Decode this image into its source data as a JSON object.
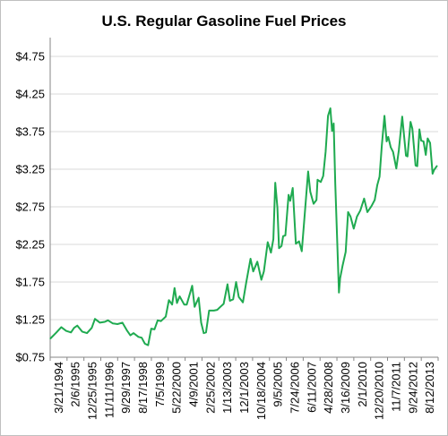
{
  "chart_data": {
    "type": "line",
    "title": "U.S. Regular Gasoline Fuel Prices",
    "xlabel": "",
    "ylabel": "",
    "ylim": [
      0.75,
      5.0
    ],
    "yticks": [
      "$0.75",
      "$1.25",
      "$1.75",
      "$2.25",
      "$2.75",
      "$3.25",
      "$3.75",
      "$4.25",
      "$4.75"
    ],
    "ytick_values": [
      0.75,
      1.25,
      1.75,
      2.25,
      2.75,
      3.25,
      3.75,
      4.25,
      4.75
    ],
    "xticks": [
      "3/21/1994",
      "2/6/1995",
      "12/25/1995",
      "11/11/1996",
      "9/29/1997",
      "8/17/1998",
      "7/5/1999",
      "5/22/2000",
      "4/9/2001",
      "2/25/2002",
      "1/13/2003",
      "12/1/2003",
      "10/18/2004",
      "9/5/2005",
      "7/24/2006",
      "6/11/2007",
      "4/28/2008",
      "3/16/2009",
      "2/1/2010",
      "12/20/2010",
      "11/7/2011",
      "9/24/2012",
      "8/12/2013"
    ],
    "grid": true,
    "legend": "none",
    "line_color": "#1faa50",
    "series": [
      {
        "values": [
          [
            "1994-01-10",
            1.0
          ],
          [
            "1994-05-01",
            1.08
          ],
          [
            "1994-08-01",
            1.15
          ],
          [
            "1994-11-01",
            1.1
          ],
          [
            "1995-02-01",
            1.08
          ],
          [
            "1995-04-01",
            1.14
          ],
          [
            "1995-06-01",
            1.17
          ],
          [
            "1995-09-01",
            1.09
          ],
          [
            "1995-12-01",
            1.07
          ],
          [
            "1996-03-01",
            1.14
          ],
          [
            "1996-05-01",
            1.26
          ],
          [
            "1996-08-01",
            1.21
          ],
          [
            "1996-11-01",
            1.22
          ],
          [
            "1997-01-01",
            1.24
          ],
          [
            "1997-04-01",
            1.2
          ],
          [
            "1997-07-01",
            1.19
          ],
          [
            "1997-10-01",
            1.21
          ],
          [
            "1998-01-01",
            1.1
          ],
          [
            "1998-03-01",
            1.04
          ],
          [
            "1998-05-01",
            1.07
          ],
          [
            "1998-08-01",
            1.02
          ],
          [
            "1998-10-01",
            1.01
          ],
          [
            "1998-12-01",
            0.93
          ],
          [
            "1999-02-01",
            0.91
          ],
          [
            "1999-04-01",
            1.13
          ],
          [
            "1999-06-01",
            1.12
          ],
          [
            "1999-08-01",
            1.24
          ],
          [
            "1999-10-01",
            1.23
          ],
          [
            "2000-01-01",
            1.29
          ],
          [
            "2000-03-01",
            1.51
          ],
          [
            "2000-05-01",
            1.45
          ],
          [
            "2000-06-15",
            1.67
          ],
          [
            "2000-08-01",
            1.47
          ],
          [
            "2000-09-20",
            1.56
          ],
          [
            "2000-12-15",
            1.45
          ],
          [
            "2001-02-01",
            1.45
          ],
          [
            "2001-05-15",
            1.7
          ],
          [
            "2001-07-01",
            1.42
          ],
          [
            "2001-09-15",
            1.54
          ],
          [
            "2001-11-01",
            1.21
          ],
          [
            "2001-12-20",
            1.07
          ],
          [
            "2002-02-01",
            1.08
          ],
          [
            "2002-04-01",
            1.37
          ],
          [
            "2002-07-01",
            1.37
          ],
          [
            "2002-09-01",
            1.38
          ],
          [
            "2002-11-01",
            1.42
          ],
          [
            "2003-01-01",
            1.46
          ],
          [
            "2003-03-15",
            1.72
          ],
          [
            "2003-05-01",
            1.5
          ],
          [
            "2003-07-01",
            1.52
          ],
          [
            "2003-08-25",
            1.75
          ],
          [
            "2003-10-15",
            1.55
          ],
          [
            "2004-01-01",
            1.48
          ],
          [
            "2004-03-01",
            1.73
          ],
          [
            "2004-05-25",
            2.06
          ],
          [
            "2004-07-15",
            1.89
          ],
          [
            "2004-10-01",
            2.02
          ],
          [
            "2004-12-15",
            1.78
          ],
          [
            "2005-02-01",
            1.89
          ],
          [
            "2005-04-15",
            2.28
          ],
          [
            "2005-06-15",
            2.14
          ],
          [
            "2005-08-01",
            2.32
          ],
          [
            "2005-09-05",
            3.07
          ],
          [
            "2005-10-15",
            2.74
          ],
          [
            "2005-11-15",
            2.2
          ],
          [
            "2006-01-01",
            2.23
          ],
          [
            "2006-02-01",
            2.36
          ],
          [
            "2006-03-15",
            2.37
          ],
          [
            "2006-05-15",
            2.91
          ],
          [
            "2006-06-15",
            2.83
          ],
          [
            "2006-08-01",
            3.0
          ],
          [
            "2006-10-01",
            2.26
          ],
          [
            "2006-12-01",
            2.29
          ],
          [
            "2007-01-20",
            2.16
          ],
          [
            "2007-03-01",
            2.5
          ],
          [
            "2007-05-20",
            3.22
          ],
          [
            "2007-07-01",
            2.95
          ],
          [
            "2007-09-01",
            2.79
          ],
          [
            "2007-10-25",
            2.84
          ],
          [
            "2007-11-15",
            3.11
          ],
          [
            "2008-01-15",
            3.08
          ],
          [
            "2008-03-01",
            3.16
          ],
          [
            "2008-04-15",
            3.48
          ],
          [
            "2008-06-01",
            3.96
          ],
          [
            "2008-07-15",
            4.06
          ],
          [
            "2008-08-15",
            3.76
          ],
          [
            "2008-09-15",
            3.86
          ],
          [
            "2008-10-15",
            3.05
          ],
          [
            "2008-12-25",
            1.61
          ],
          [
            "2009-01-15",
            1.8
          ],
          [
            "2009-03-01",
            1.96
          ],
          [
            "2009-05-01",
            2.15
          ],
          [
            "2009-06-15",
            2.68
          ],
          [
            "2009-08-01",
            2.62
          ],
          [
            "2009-10-01",
            2.46
          ],
          [
            "2009-12-01",
            2.62
          ],
          [
            "2010-02-01",
            2.7
          ],
          [
            "2010-04-15",
            2.86
          ],
          [
            "2010-06-15",
            2.68
          ],
          [
            "2010-09-01",
            2.76
          ],
          [
            "2010-11-01",
            2.84
          ],
          [
            "2010-12-20",
            3.04
          ],
          [
            "2011-02-01",
            3.15
          ],
          [
            "2011-03-15",
            3.56
          ],
          [
            "2011-05-05",
            3.96
          ],
          [
            "2011-06-15",
            3.62
          ],
          [
            "2011-07-15",
            3.68
          ],
          [
            "2011-09-01",
            3.54
          ],
          [
            "2011-10-15",
            3.48
          ],
          [
            "2011-12-15",
            3.26
          ],
          [
            "2012-02-01",
            3.5
          ],
          [
            "2012-04-05",
            3.95
          ],
          [
            "2012-06-15",
            3.43
          ],
          [
            "2012-07-15",
            3.42
          ],
          [
            "2012-09-10",
            3.88
          ],
          [
            "2012-10-15",
            3.79
          ],
          [
            "2012-12-15",
            3.3
          ],
          [
            "2013-01-15",
            3.29
          ],
          [
            "2013-02-25",
            3.78
          ],
          [
            "2013-04-01",
            3.63
          ],
          [
            "2013-05-15",
            3.62
          ],
          [
            "2013-06-25",
            3.44
          ],
          [
            "2013-08-01",
            3.66
          ],
          [
            "2013-09-15",
            3.6
          ],
          [
            "2013-11-01",
            3.19
          ],
          [
            "2013-12-01",
            3.24
          ],
          [
            "2014-01-20",
            3.29
          ]
        ]
      }
    ]
  }
}
